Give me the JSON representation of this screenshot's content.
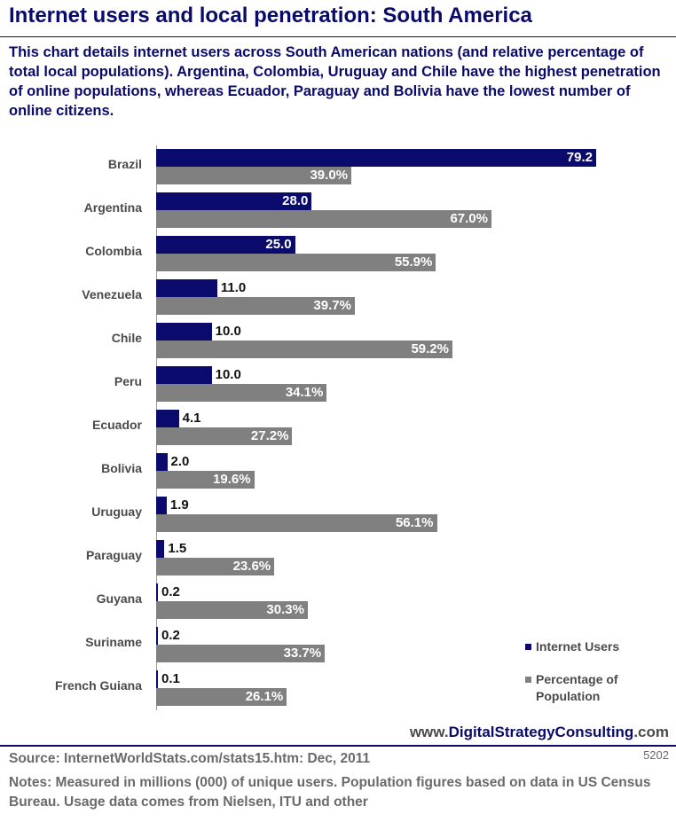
{
  "header": {
    "title": "Internet users and local penetration: South America",
    "subtitle": "This chart details internet users across South American nations (and relative percentage of total local populations). Argentina, Colombia, Uruguay and Chile have the highest penetration of online populations, whereas Ecuador, Paraguay and Bolivia have the lowest number of online citizens."
  },
  "chart_data": {
    "type": "bar",
    "orientation": "horizontal",
    "categories": [
      "Brazil",
      "Argentina",
      "Colombia",
      "Venezuela",
      "Chile",
      "Peru",
      "Ecuador",
      "Bolivia",
      "Uruguay",
      "Paraguay",
      "Guyana",
      "Suriname",
      "French Guiana"
    ],
    "series": [
      {
        "name": "Internet Users",
        "values": [
          79.2,
          28.0,
          25.0,
          11.0,
          10.0,
          10.0,
          4.1,
          2.0,
          1.9,
          1.5,
          0.2,
          0.2,
          0.1
        ],
        "labels": [
          "79.2",
          "28.0",
          "25.0",
          "11.0",
          "10.0",
          "10.0",
          "4.1",
          "2.0",
          "1.9",
          "1.5",
          "0.2",
          "0.2",
          "0.1"
        ],
        "color": "#0b0b6e"
      },
      {
        "name": "Percentage of Population",
        "values": [
          39.0,
          67.0,
          55.9,
          39.7,
          59.2,
          34.1,
          27.2,
          19.6,
          56.1,
          23.6,
          30.3,
          33.7,
          26.1
        ],
        "labels": [
          "39.0%",
          "67.0%",
          "55.9%",
          "39.7%",
          "59.2%",
          "34.1%",
          "27.2%",
          "19.6%",
          "56.1%",
          "23.6%",
          "30.3%",
          "33.7%",
          "26.1%"
        ],
        "color": "#808080"
      }
    ],
    "legend_position": "bottom-right",
    "grid": false
  },
  "legend": {
    "items": [
      {
        "label": "Internet Users",
        "color": "#0b0b6e"
      },
      {
        "label": "Percentage of Population",
        "color": "#808080"
      }
    ]
  },
  "footer": {
    "website_prefix": "www.",
    "website_main": "DigitalStrategyConsulting",
    "website_suffix": ".com",
    "source": "Source: InternetWorldStats.com/stats15.htm:  Dec, 2011",
    "code": "5202",
    "notes": "Notes: Measured in millions (000) of unique users. Population figures based on data in US Census Bureau. Usage data comes from Nielsen, ITU and other"
  }
}
